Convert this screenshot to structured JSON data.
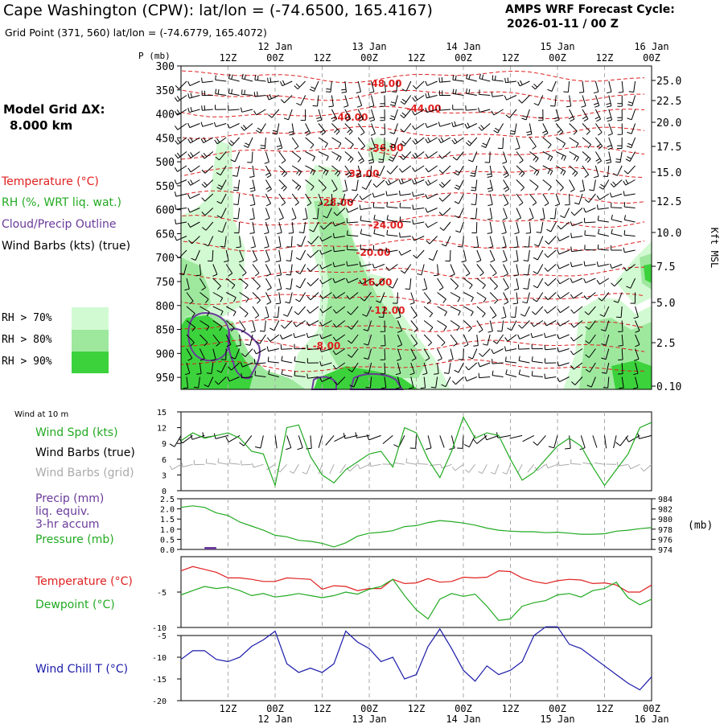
{
  "header": {
    "title": "Cape Washington (CPW):  lat/lon = (-74.6500, 165.4167)",
    "subtitle": "Grid Point (371, 560) lat/lon = (-74.6779, 165.4072)",
    "cycle_line1": "AMPS WRF Forecast Cycle:",
    "cycle_line2": "2026-01-11 / 00  Z",
    "grid_label1": "Model Grid ΔX:",
    "grid_label2": "8.000 km"
  },
  "legend": {
    "temperature": "Temperature (°C)",
    "rh": "RH (%, WRT liq. wat.)",
    "cloud": "Cloud/Precip Outline",
    "wind": "Wind Barbs (kts) (true)",
    "rh70": "RH > 70%",
    "rh80": "RH > 80%",
    "rh90": "RH > 90%",
    "rh70_color": "#d2fad2",
    "rh80_color": "#9ee89e",
    "rh90_color": "#3cd23c"
  },
  "time_axis": {
    "top_hours": [
      "12Z",
      "00Z",
      "12Z",
      "00Z",
      "12Z",
      "00Z",
      "12Z",
      "00Z",
      "12Z",
      "00Z"
    ],
    "top_dates": [
      "12 Jan",
      "13 Jan",
      "14 Jan",
      "15 Jan",
      "16 Jan"
    ],
    "bottom_hours": [
      "12Z",
      "00Z",
      "12Z",
      "00Z",
      "12Z",
      "00Z",
      "12Z",
      "00Z",
      "12Z",
      "00Z"
    ],
    "bottom_dates": [
      "12 Jan",
      "13 Jan",
      "14 Jan",
      "15 Jan",
      "16 Jan"
    ]
  },
  "chart_data": [
    {
      "type": "contour",
      "name": "upper-air cross section",
      "ylabel": "P (mb)",
      "pressure_ticks": [
        300,
        350,
        400,
        450,
        500,
        550,
        600,
        650,
        700,
        750,
        800,
        850,
        900,
        950
      ],
      "right_axis_label": "Kft MSL",
      "right_axis_ticks": [
        "25.0",
        "22.5",
        "20.0",
        "17.5",
        "15.0",
        "12.5",
        "10.0",
        "7.5",
        "5.0",
        "2.5",
        "0.10"
      ],
      "temperature_contour_labels": [
        "-48.00",
        "-44.00",
        "-40.00",
        "-36.00",
        "-32.00",
        "-28.00",
        "-24.00",
        "-20.00",
        "-16.00",
        "-12.00",
        "-8.00"
      ],
      "colors": {
        "temperature": "#e02020",
        "cloud": "#6a3a9a",
        "barbs": "#000000"
      }
    },
    {
      "type": "line",
      "name": "wind at 10 m",
      "panel_label": "Wind at 10 m",
      "series_labels": [
        "Wind Spd (kts)",
        "Wind Barbs (true)",
        "Wind Barbs (grid)"
      ],
      "colors": {
        "speed": "#22aa22",
        "true_barbs": "#000000",
        "grid_barbs": "#aaaaaa"
      },
      "ylim": [
        0,
        15
      ],
      "yticks": [
        0,
        3,
        6,
        9,
        12,
        15
      ],
      "x_hours": [
        0,
        3,
        6,
        9,
        12,
        15,
        18,
        21,
        24,
        27,
        30,
        33,
        36,
        39,
        42,
        45,
        48,
        51,
        54,
        57,
        60,
        63,
        66,
        69,
        72,
        75,
        78,
        81,
        84,
        87,
        90,
        93,
        96,
        99,
        102,
        105,
        108,
        111,
        114,
        117,
        120
      ],
      "speed": [
        9.5,
        11,
        10,
        10.5,
        11,
        10,
        7.5,
        7,
        1,
        12,
        12.5,
        6.5,
        3,
        1.5,
        4,
        5.5,
        7,
        7.5,
        4.5,
        12,
        11,
        6,
        2.5,
        7.5,
        14,
        10,
        11,
        10.5,
        6,
        2,
        3.5,
        6,
        8.5,
        10,
        8.5,
        4.5,
        1,
        4,
        7,
        12,
        13
      ]
    },
    {
      "type": "line",
      "name": "precip and pressure",
      "series_labels": [
        "Precip (mm)",
        "liq. equiv.",
        "3-hr accum",
        "Pressure (mb)"
      ],
      "colors": {
        "precip": "#6a3a9a",
        "pressure": "#22aa22"
      },
      "left_ylim": [
        0,
        2.5
      ],
      "left_yticks": [
        "0.0",
        "0.5",
        "1.0",
        "1.5",
        "2.0",
        "2.5"
      ],
      "right_ylim": [
        974,
        984
      ],
      "right_yticks": [
        974,
        976,
        978,
        980,
        982,
        984
      ],
      "right_label": "(mb)",
      "x_hours": [
        0,
        3,
        6,
        9,
        12,
        15,
        18,
        21,
        24,
        27,
        30,
        33,
        36,
        39,
        42,
        45,
        48,
        51,
        54,
        57,
        60,
        63,
        66,
        69,
        72,
        75,
        78,
        81,
        84,
        87,
        90,
        93,
        96,
        99,
        102,
        105,
        108,
        111,
        114,
        117,
        120
      ],
      "pressure": [
        982.3,
        982.6,
        982.3,
        981.2,
        980.7,
        979.4,
        978.6,
        977.8,
        976.8,
        976.5,
        975.8,
        975.6,
        975.2,
        974.5,
        975.3,
        976.6,
        977.2,
        977.4,
        977.7,
        978.5,
        978.7,
        979.3,
        979.7,
        979.5,
        979.2,
        978.8,
        978.2,
        977.8,
        977.6,
        977.5,
        977.5,
        977.3,
        977.4,
        977.2,
        977.0,
        977.0,
        977.1,
        977.6,
        977.8,
        978.1,
        978.3
      ],
      "precip_hours": [
        6,
        9
      ],
      "precip_values": [
        0.05,
        0.05
      ]
    },
    {
      "type": "line",
      "name": "temperature and dewpoint",
      "series_labels": [
        "Temperature (°C)",
        "Dewpoint (°C)"
      ],
      "colors": {
        "temperature": "#e02020",
        "dewpoint": "#22aa22"
      },
      "ylim": [
        -10,
        0
      ],
      "yticks": [
        "-5",
        "-10"
      ],
      "x_hours": [
        0,
        3,
        6,
        9,
        12,
        15,
        18,
        21,
        24,
        27,
        30,
        33,
        36,
        39,
        42,
        45,
        48,
        51,
        54,
        57,
        60,
        63,
        66,
        69,
        72,
        75,
        78,
        81,
        84,
        87,
        90,
        93,
        96,
        99,
        102,
        105,
        108,
        111,
        114,
        117,
        120
      ],
      "temperature": [
        -2,
        -1.4,
        -1.8,
        -2.2,
        -3,
        -3,
        -3.2,
        -3.5,
        -3.5,
        -3,
        -3.1,
        -3.2,
        -4.6,
        -4.1,
        -4.2,
        -4.8,
        -4.5,
        -4.5,
        -3.2,
        -3.8,
        -3.7,
        -3.1,
        -3.6,
        -3.5,
        -2.9,
        -3.0,
        -2.9,
        -2.0,
        -2.1,
        -3.0,
        -3.5,
        -3.8,
        -3.4,
        -3.2,
        -3.3,
        -3.8,
        -3.7,
        -4.0,
        -5.0,
        -5.0,
        -4.0
      ],
      "dewpoint": [
        -5.4,
        -4.8,
        -4.2,
        -4.5,
        -4.3,
        -4.8,
        -5.5,
        -5.2,
        -5.7,
        -5.5,
        -5.2,
        -5.5,
        -5.8,
        -5.5,
        -5.0,
        -5.3,
        -4.6,
        -4.2,
        -3.2,
        -5.5,
        -7.5,
        -8.8,
        -6.0,
        -5.2,
        -5.6,
        -5.3,
        -7.0,
        -9.0,
        -8.8,
        -7.0,
        -6.5,
        -6.2,
        -5.4,
        -5.2,
        -5.7,
        -4.8,
        -4.5,
        -3.6,
        -5.8,
        -6.8,
        -6.0
      ]
    },
    {
      "type": "line",
      "name": "wind chill",
      "series_labels": [
        "Wind Chill T (°C)"
      ],
      "colors": {
        "windchill": "#1a1aaa"
      },
      "ylim": [
        -20,
        -5
      ],
      "yticks": [
        "-5",
        "-10",
        "-15",
        "-20"
      ],
      "x_hours": [
        0,
        3,
        6,
        9,
        12,
        15,
        18,
        21,
        24,
        27,
        30,
        33,
        36,
        39,
        42,
        45,
        48,
        51,
        54,
        57,
        60,
        63,
        66,
        69,
        72,
        75,
        78,
        81,
        84,
        87,
        90,
        93,
        96,
        99,
        102,
        105,
        108,
        111,
        114,
        117,
        120
      ],
      "windchill": [
        -10.5,
        -8.5,
        -8.5,
        -10.5,
        -11,
        -10,
        -7.5,
        -6,
        -4,
        -11.5,
        -13.5,
        -12.5,
        -13.5,
        -11.5,
        -4,
        -6.5,
        -8,
        -11,
        -10,
        -15,
        -14,
        -7.5,
        -3.5,
        -8,
        -13,
        -15.5,
        -12,
        -14,
        -13,
        -11,
        -5,
        -3,
        -3,
        -7,
        -8,
        -10,
        -12,
        -14,
        -16,
        -17.5,
        -14.5
      ]
    }
  ]
}
